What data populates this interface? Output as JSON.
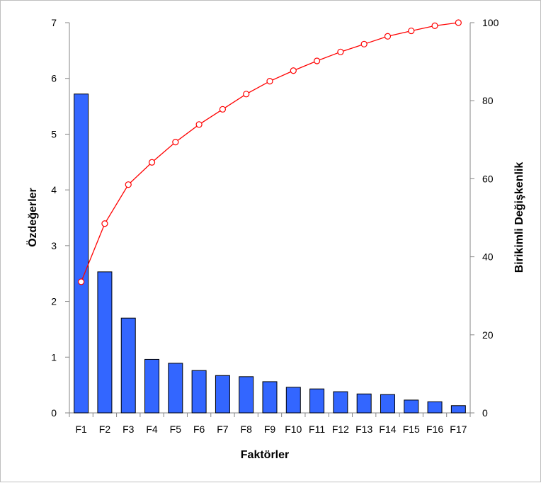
{
  "chart_data": {
    "type": "bar+line",
    "title": "",
    "xlabel": "Faktörler",
    "ylabel_left": "Özdeğerler",
    "ylabel_right": "Birikimli Değişkenlik",
    "categories": [
      "F1",
      "F2",
      "F3",
      "F4",
      "F5",
      "F6",
      "F7",
      "F8",
      "F9",
      "F10",
      "F11",
      "F12",
      "F13",
      "F14",
      "F15",
      "F16",
      "F17"
    ],
    "bars": {
      "axis": "left",
      "color": "#3366ff",
      "values": [
        5.72,
        2.53,
        1.7,
        0.96,
        0.89,
        0.76,
        0.67,
        0.65,
        0.56,
        0.46,
        0.43,
        0.38,
        0.34,
        0.33,
        0.23,
        0.2,
        0.13
      ]
    },
    "line": {
      "axis": "right",
      "color": "#ff0000",
      "marker": "open-circle",
      "values": [
        33.6,
        48.5,
        58.5,
        64.2,
        69.4,
        73.9,
        77.8,
        81.7,
        85.0,
        87.7,
        90.2,
        92.5,
        94.5,
        96.5,
        97.9,
        99.2,
        100
      ]
    },
    "ylim_left": [
      0,
      7
    ],
    "yticks_left": [
      "0",
      "1",
      "2",
      "3",
      "4",
      "5",
      "6",
      "7"
    ],
    "ylim_right": [
      0,
      100
    ],
    "yticks_right": [
      "0",
      "20",
      "40",
      "60",
      "80",
      "100"
    ],
    "grid": false,
    "legend": "none"
  }
}
